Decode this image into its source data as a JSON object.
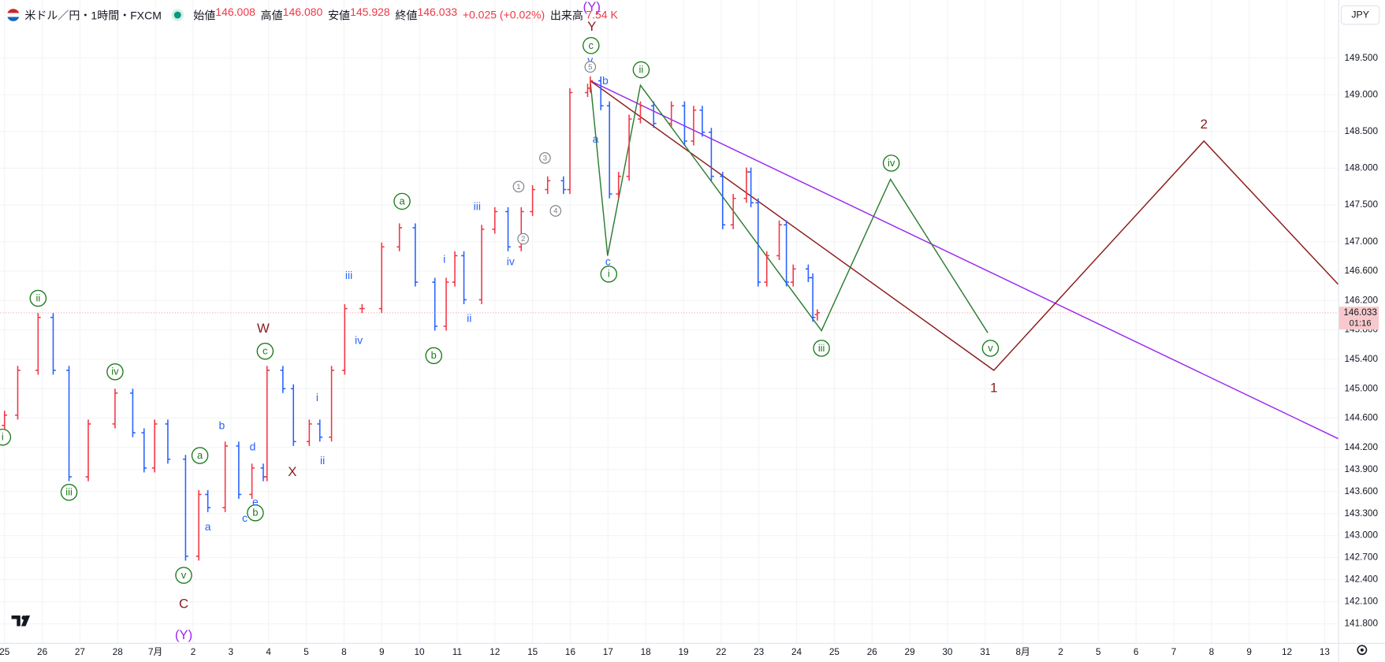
{
  "header": {
    "symbol": "米ドル／円・1時間・FXCM",
    "fields": [
      {
        "name": "始値",
        "value": 146.008,
        "label": "146.008"
      },
      {
        "name": "高値",
        "value": 146.08,
        "label": "146.080"
      },
      {
        "name": "安値",
        "value": 145.928,
        "label": "145.928"
      },
      {
        "name": "終値",
        "value": 146.033,
        "label": "146.033"
      }
    ],
    "change": "+0.025 (+0.02%)",
    "volume_name": "出来高",
    "volume": "7.54 K",
    "currency": "JPY"
  },
  "chart_data": {
    "type": "ohlc",
    "up_color": "#f23645",
    "down_color": "#2962ff",
    "x": [
      0.0,
      0.35,
      0.89,
      1.29,
      1.71,
      2.22,
      2.93,
      3.4,
      3.7,
      3.98,
      4.33,
      4.8,
      5.15,
      5.39,
      5.85,
      6.21,
      6.56,
      6.86,
      6.96,
      7.38,
      7.66,
      8.08,
      8.36,
      8.67,
      9.02,
      9.48,
      10.0,
      10.47,
      10.89,
      11.41,
      11.71,
      11.94,
      12.18,
      12.65,
      13.0,
      13.35,
      13.7,
      14.0,
      14.4,
      14.82,
      14.99,
      15.46,
      15.53,
      15.81,
      16.04,
      16.28,
      16.56,
      16.86,
      17.21,
      17.68,
      18.03,
      18.27,
      18.5,
      18.74,
      19.04,
      19.32,
      19.67,
      19.79,
      19.98,
      20.21,
      20.54,
      20.73,
      20.91,
      21.31,
      21.43,
      21.55
    ],
    "open": [
      144.5,
      144.64,
      145.25,
      145.97,
      145.25,
      143.8,
      144.52,
      144.94,
      144.4,
      143.92,
      144.52,
      144.04,
      142.72,
      143.56,
      143.38,
      144.22,
      143.56,
      143.92,
      143.8,
      145.25,
      145.0,
      144.28,
      144.52,
      144.34,
      145.25,
      146.09,
      146.09,
      146.93,
      147.19,
      146.45,
      145.85,
      146.45,
      146.81,
      146.21,
      147.17,
      147.41,
      146.93,
      147.41,
      147.71,
      147.83,
      147.71,
      149.03,
      149.09,
      149.19,
      148.85,
      147.65,
      147.89,
      148.67,
      148.85,
      148.61,
      148.85,
      148.37,
      148.79,
      148.49,
      147.89,
      147.23,
      147.59,
      147.95,
      147.53,
      146.45,
      146.81,
      147.23,
      146.45,
      146.63,
      146.51,
      146.008
    ],
    "high": [
      144.7,
      145.31,
      146.03,
      146.03,
      145.31,
      144.58,
      145.0,
      145.0,
      144.46,
      144.58,
      144.58,
      144.1,
      143.62,
      143.62,
      144.28,
      144.28,
      143.98,
      143.98,
      145.31,
      145.31,
      145.06,
      144.58,
      144.58,
      145.31,
      146.15,
      146.15,
      146.99,
      147.25,
      147.25,
      146.51,
      146.51,
      146.87,
      146.87,
      147.23,
      147.47,
      147.47,
      147.47,
      147.77,
      147.89,
      147.89,
      149.09,
      149.15,
      149.25,
      149.25,
      148.91,
      147.95,
      148.73,
      148.91,
      148.91,
      148.91,
      148.91,
      148.85,
      148.85,
      148.55,
      147.95,
      147.65,
      148.01,
      148.01,
      147.59,
      146.87,
      147.29,
      147.29,
      146.69,
      146.69,
      146.57,
      146.08
    ],
    "low": [
      144.44,
      144.58,
      145.19,
      145.19,
      143.74,
      143.74,
      144.46,
      144.34,
      143.86,
      143.86,
      143.98,
      142.66,
      142.66,
      143.32,
      143.32,
      143.5,
      143.5,
      143.74,
      143.74,
      144.94,
      144.22,
      144.22,
      144.28,
      144.28,
      145.19,
      146.03,
      146.03,
      146.87,
      146.39,
      145.79,
      145.79,
      146.39,
      146.15,
      146.15,
      147.11,
      146.87,
      146.87,
      147.35,
      147.65,
      147.65,
      147.65,
      148.97,
      149.03,
      148.79,
      147.59,
      147.59,
      147.83,
      148.61,
      148.55,
      148.55,
      148.31,
      148.31,
      148.43,
      147.83,
      147.17,
      147.17,
      147.53,
      147.47,
      146.39,
      146.39,
      146.75,
      146.39,
      146.39,
      146.45,
      145.91,
      145.928
    ],
    "close": [
      144.64,
      145.25,
      145.97,
      145.25,
      143.8,
      144.52,
      144.94,
      144.4,
      143.92,
      144.52,
      144.04,
      142.72,
      143.56,
      143.38,
      144.22,
      143.56,
      143.92,
      143.8,
      145.25,
      145.0,
      144.28,
      144.52,
      144.34,
      145.25,
      146.09,
      146.09,
      146.93,
      147.19,
      146.45,
      145.85,
      146.45,
      146.81,
      146.21,
      147.17,
      147.41,
      146.93,
      147.41,
      147.71,
      147.83,
      147.71,
      149.03,
      149.09,
      149.19,
      148.85,
      147.65,
      147.89,
      148.67,
      148.85,
      148.61,
      148.85,
      148.37,
      148.79,
      148.49,
      147.89,
      147.23,
      147.59,
      147.95,
      147.53,
      146.45,
      146.81,
      147.23,
      146.45,
      146.63,
      146.51,
      145.97,
      146.033
    ],
    "last_price": {
      "value": 146.033,
      "label": "146.033"
    },
    "countdown": "01:16",
    "xlim": [
      -0.12,
      35.36
    ],
    "xticks": [
      {
        "value": 0,
        "label": "25"
      },
      {
        "value": 1,
        "label": "26"
      },
      {
        "value": 2,
        "label": "27"
      },
      {
        "value": 3,
        "label": "28"
      },
      {
        "value": 4,
        "label": "7月"
      },
      {
        "value": 5,
        "label": "2"
      },
      {
        "value": 6,
        "label": "3"
      },
      {
        "value": 7,
        "label": "4"
      },
      {
        "value": 8,
        "label": "5"
      },
      {
        "value": 9,
        "label": "8"
      },
      {
        "value": 10,
        "label": "9"
      },
      {
        "value": 11,
        "label": "10"
      },
      {
        "value": 12,
        "label": "11"
      },
      {
        "value": 13,
        "label": "12"
      },
      {
        "value": 14,
        "label": "15"
      },
      {
        "value": 15,
        "label": "16"
      },
      {
        "value": 16,
        "label": "17"
      },
      {
        "value": 17,
        "label": "18"
      },
      {
        "value": 18,
        "label": "19"
      },
      {
        "value": 19,
        "label": "22"
      },
      {
        "value": 20,
        "label": "23"
      },
      {
        "value": 21,
        "label": "24"
      },
      {
        "value": 22,
        "label": "25"
      },
      {
        "value": 23,
        "label": "26"
      },
      {
        "value": 24,
        "label": "29"
      },
      {
        "value": 25,
        "label": "30"
      },
      {
        "value": 26,
        "label": "31"
      },
      {
        "value": 27,
        "label": "8月"
      },
      {
        "value": 28,
        "label": "2"
      },
      {
        "value": 29,
        "label": "5"
      },
      {
        "value": 30,
        "label": "6"
      },
      {
        "value": 31,
        "label": "7"
      },
      {
        "value": 32,
        "label": "8"
      },
      {
        "value": 33,
        "label": "9"
      },
      {
        "value": 34,
        "label": "12"
      },
      {
        "value": 35,
        "label": "13"
      }
    ],
    "ylim": [
      141.54,
      150.29
    ],
    "yticks": [
      {
        "value": 149.5,
        "label": "149.500"
      },
      {
        "value": 149.0,
        "label": "149.000"
      },
      {
        "value": 148.5,
        "label": "148.500"
      },
      {
        "value": 148.0,
        "label": "148.000"
      },
      {
        "value": 147.5,
        "label": "147.500"
      },
      {
        "value": 147.0,
        "label": "147.000"
      },
      {
        "value": 146.6,
        "label": "146.600"
      },
      {
        "value": 146.2,
        "label": "146.200"
      },
      {
        "value": 145.8,
        "label": "145.800"
      },
      {
        "value": 145.4,
        "label": "145.400"
      },
      {
        "value": 145.0,
        "label": "145.000"
      },
      {
        "value": 144.6,
        "label": "144.600"
      },
      {
        "value": 144.2,
        "label": "144.200"
      },
      {
        "value": 143.9,
        "label": "143.900"
      },
      {
        "value": 143.6,
        "label": "143.600"
      },
      {
        "value": 143.3,
        "label": "143.300"
      },
      {
        "value": 143.0,
        "label": "143.000"
      },
      {
        "value": 142.7,
        "label": "142.700"
      },
      {
        "value": 142.4,
        "label": "142.400"
      },
      {
        "value": 142.1,
        "label": "142.100"
      },
      {
        "value": 141.8,
        "label": "141.800"
      }
    ],
    "lines": [
      {
        "color": "#9c27f0",
        "x": [
          15.53,
          35.36
        ],
        "y": [
          149.19,
          144.32
        ]
      },
      {
        "color": "#8b1a1a",
        "x": [
          15.53,
          26.23,
          31.8,
          35.36
        ],
        "y": [
          149.19,
          145.25,
          148.37,
          146.42
        ]
      },
      {
        "color": "#2e7d32",
        "x": [
          15.53,
          15.99,
          16.86,
          21.66,
          23.49,
          26.07
        ],
        "y": [
          149.19,
          146.81,
          149.13,
          145.79,
          147.85,
          145.76
        ]
      }
    ],
    "annotations": [
      {
        "color": "#1b7a1b",
        "style": "circle",
        "labels": [
          {
            "text": "i",
            "x": -0.05,
            "y": 144.34
          },
          {
            "text": "ii",
            "x": 0.89,
            "y": 146.23
          },
          {
            "text": "iii",
            "x": 1.71,
            "y": 143.59
          },
          {
            "text": "iv",
            "x": 2.93,
            "y": 145.23
          },
          {
            "text": "v",
            "x": 4.75,
            "y": 142.46
          },
          {
            "text": "a",
            "x": 5.18,
            "y": 144.09
          },
          {
            "text": "b",
            "x": 6.65,
            "y": 143.31
          },
          {
            "text": "c",
            "x": 6.91,
            "y": 145.51
          },
          {
            "text": "a",
            "x": 10.54,
            "y": 147.55
          },
          {
            "text": "b",
            "x": 11.38,
            "y": 145.45
          },
          {
            "text": "c",
            "x": 15.55,
            "y": 149.67
          },
          {
            "text": "ii",
            "x": 16.88,
            "y": 149.34
          },
          {
            "text": "i",
            "x": 16.02,
            "y": 146.56
          },
          {
            "text": "iii",
            "x": 21.66,
            "y": 145.55
          },
          {
            "text": "iv",
            "x": 23.51,
            "y": 148.07
          },
          {
            "text": "v",
            "x": 26.14,
            "y": 145.55
          }
        ]
      },
      {
        "color": "#8b1a1a",
        "style": "plain",
        "labels": [
          {
            "text": "W",
            "x": 6.86,
            "y": 145.81
          },
          {
            "text": "X",
            "x": 7.63,
            "y": 143.86
          },
          {
            "text": "C",
            "x": 4.75,
            "y": 142.06
          },
          {
            "text": "Y",
            "x": 15.57,
            "y": 149.92
          },
          {
            "text": "1",
            "x": 26.23,
            "y": 145.0
          },
          {
            "text": "2",
            "x": 31.8,
            "y": 148.59
          }
        ]
      },
      {
        "color": "#9c27f0",
        "style": "plain",
        "labels": [
          {
            "text": "(Y)",
            "x": 15.57,
            "y": 150.19
          },
          {
            "text": "(Y)",
            "x": 4.75,
            "y": 141.64
          }
        ]
      },
      {
        "color": "#2962ff",
        "style": "small",
        "labels": [
          {
            "text": "b",
            "x": 5.76,
            "y": 144.49
          },
          {
            "text": "a",
            "x": 5.39,
            "y": 143.11
          },
          {
            "text": "c",
            "x": 6.37,
            "y": 143.23
          },
          {
            "text": "d",
            "x": 6.58,
            "y": 144.2
          },
          {
            "text": "e",
            "x": 6.65,
            "y": 143.45
          },
          {
            "text": "i",
            "x": 8.29,
            "y": 144.87
          },
          {
            "text": "ii",
            "x": 8.43,
            "y": 144.01
          },
          {
            "text": "iii",
            "x": 9.13,
            "y": 146.53
          },
          {
            "text": "iv",
            "x": 9.39,
            "y": 145.65
          },
          {
            "text": "i",
            "x": 11.66,
            "y": 146.75
          },
          {
            "text": "ii",
            "x": 12.32,
            "y": 145.95
          },
          {
            "text": "iii",
            "x": 12.53,
            "y": 147.47
          },
          {
            "text": "iv",
            "x": 13.42,
            "y": 146.72
          },
          {
            "text": "a",
            "x": 15.67,
            "y": 148.39
          },
          {
            "text": "b",
            "x": 15.93,
            "y": 149.18
          },
          {
            "text": "c",
            "x": 16.0,
            "y": 146.72
          },
          {
            "text": "v",
            "x": 15.53,
            "y": 149.46
          }
        ]
      },
      {
        "color": "#787b86",
        "style": "mini-circle",
        "labels": [
          {
            "text": "1",
            "x": 13.63,
            "y": 147.75
          },
          {
            "text": "2",
            "x": 13.75,
            "y": 147.04
          },
          {
            "text": "3",
            "x": 14.33,
            "y": 148.14
          },
          {
            "text": "4",
            "x": 14.61,
            "y": 147.42
          },
          {
            "text": "5",
            "x": 15.53,
            "y": 149.38
          }
        ]
      }
    ]
  }
}
